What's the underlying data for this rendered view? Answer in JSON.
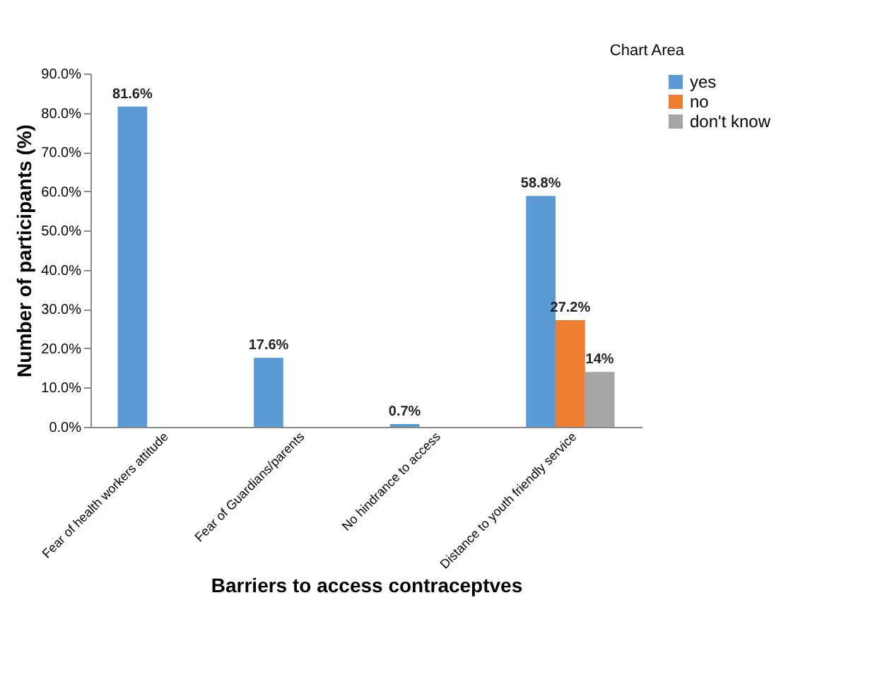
{
  "chart_data": {
    "type": "bar",
    "xlabel": "Barriers to access contraceptves",
    "ylabel": "Number of participants (%)",
    "categories": [
      "Fear of health workers attitude",
      "Fear of Guardians/parents",
      "No hindrance to access",
      "Distance to youth friendly service"
    ],
    "series": [
      {
        "name": "yes",
        "color": "#5b9bd5",
        "values": [
          81.6,
          17.6,
          0.7,
          58.8
        ],
        "value_labels": [
          "81.6%",
          "17.6%",
          "0.7%",
          "58.8%"
        ]
      },
      {
        "name": "no",
        "color": "#ed7d31",
        "values": [
          null,
          null,
          null,
          27.2
        ],
        "value_labels": [
          null,
          null,
          null,
          "27.2%"
        ]
      },
      {
        "name": "don't know",
        "color": "#a5a5a5",
        "values": [
          null,
          null,
          null,
          14
        ],
        "value_labels": [
          null,
          null,
          null,
          "14%"
        ]
      }
    ],
    "ylim": [
      0,
      90
    ],
    "yticks": [
      {
        "value": 0,
        "label": "0.0%"
      },
      {
        "value": 10,
        "label": "10.0%"
      },
      {
        "value": 20,
        "label": "20.0%"
      },
      {
        "value": 30,
        "label": "30.0%"
      },
      {
        "value": 40,
        "label": "40.0%"
      },
      {
        "value": 50,
        "label": "50.0%"
      },
      {
        "value": 60,
        "label": "60.0%"
      },
      {
        "value": 70,
        "label": "70.0%"
      },
      {
        "value": 80,
        "label": "80.0%"
      },
      {
        "value": 90,
        "label": "90.0%"
      }
    ],
    "grid": false,
    "legend": "right",
    "annotations": [
      "Chart Area"
    ]
  }
}
